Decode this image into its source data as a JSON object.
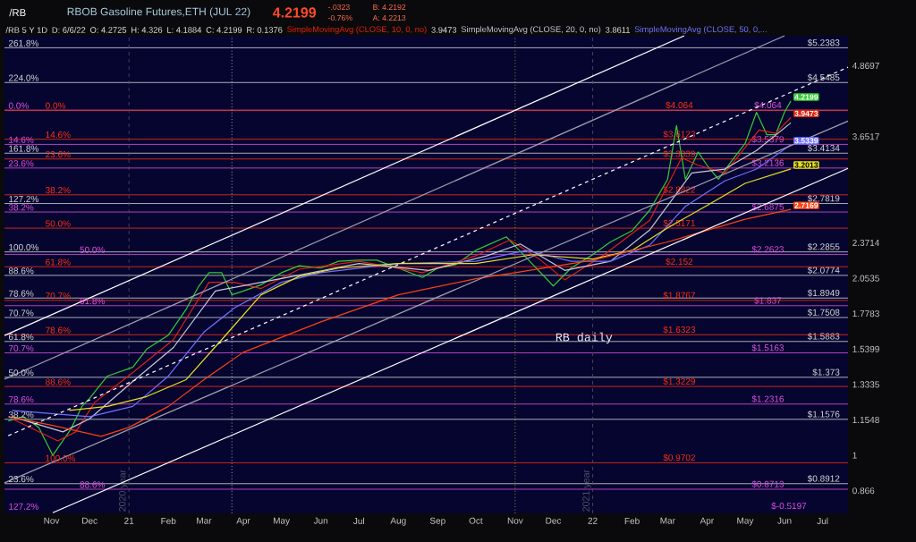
{
  "chart_data": {
    "type": "line",
    "title": "RBOB Gasoline Futures,ETH (JUL 22)",
    "marker": "none",
    "log": true,
    "legend": "top",
    "xlim": [
      "2020-09-25",
      "2022-07-21"
    ],
    "ylim": [
      0.79,
      5.5
    ],
    "xticks": [
      {
        "value": "2020-11-01",
        "label": "Nov"
      },
      {
        "value": "2020-12-01",
        "label": "Dec"
      },
      {
        "value": "2021-01-01",
        "label": "21"
      },
      {
        "value": "2021-02-01",
        "label": "Feb"
      },
      {
        "value": "2021-03-01",
        "label": "Mar"
      },
      {
        "value": "2021-04-01",
        "label": "Apr"
      },
      {
        "value": "2021-05-01",
        "label": "May"
      },
      {
        "value": "2021-06-01",
        "label": "Jun"
      },
      {
        "value": "2021-07-01",
        "label": "Jul"
      },
      {
        "value": "2021-08-01",
        "label": "Aug"
      },
      {
        "value": "2021-09-01",
        "label": "Sep"
      },
      {
        "value": "2021-10-01",
        "label": "Oct"
      },
      {
        "value": "2021-11-01",
        "label": "Nov"
      },
      {
        "value": "2021-12-01",
        "label": "Dec"
      },
      {
        "value": "2022-01-01",
        "label": "22"
      },
      {
        "value": "2022-02-01",
        "label": "Feb"
      },
      {
        "value": "2022-03-01",
        "label": "Mar"
      },
      {
        "value": "2022-04-01",
        "label": "Apr"
      },
      {
        "value": "2022-05-01",
        "label": "May"
      },
      {
        "value": "2022-06-01",
        "label": "Jun"
      },
      {
        "value": "2022-07-01",
        "label": "Jul"
      }
    ],
    "yticks": [
      {
        "value": 0.866,
        "label": "0.866"
      },
      {
        "value": 1,
        "label": "1"
      },
      {
        "value": 1.1548,
        "label": "1.1548"
      },
      {
        "value": 1.3335,
        "label": "1.3335"
      },
      {
        "value": 1.5399,
        "label": "1.5399"
      },
      {
        "value": 1.7783,
        "label": "1.7783"
      },
      {
        "value": 2.0535,
        "label": "2.0535"
      },
      {
        "value": 2.3714,
        "label": "2.3714"
      },
      {
        "value": 3.6517,
        "label": "3.6517"
      },
      {
        "value": 4.8697,
        "label": "4.8697"
      }
    ],
    "series": [
      {
        "color": "#33cc33",
        "x": [
          "2020-09-28",
          "2020-10-10",
          "2020-10-22",
          "2020-11-02",
          "2020-11-06",
          "2020-11-16",
          "2020-11-25",
          "2020-12-01",
          "2020-12-15",
          "2021-01-04",
          "2021-01-15",
          "2021-02-01",
          "2021-02-15",
          "2021-02-25",
          "2021-03-05",
          "2021-03-15",
          "2021-03-23",
          "2021-04-01",
          "2021-04-15",
          "2021-05-01",
          "2021-05-15",
          "2021-06-01",
          "2021-06-15",
          "2021-07-01",
          "2021-07-15",
          "2021-08-01",
          "2021-08-20",
          "2021-09-01",
          "2021-09-15",
          "2021-10-01",
          "2021-10-25",
          "2021-11-01",
          "2021-11-15",
          "2021-12-01",
          "2021-12-15",
          "2022-01-01",
          "2022-01-15",
          "2022-02-01",
          "2022-02-15",
          "2022-03-01",
          "2022-03-08",
          "2022-03-15",
          "2022-03-25",
          "2022-04-01",
          "2022-04-10",
          "2022-04-20",
          "2022-05-01",
          "2022-05-10",
          "2022-05-18",
          "2022-05-25",
          "2022-06-01",
          "2022-06-06"
        ],
        "values": [
          1.15,
          1.17,
          1.12,
          1.0,
          1.03,
          1.11,
          1.22,
          1.26,
          1.38,
          1.43,
          1.54,
          1.63,
          1.81,
          1.99,
          2.1,
          2.1,
          1.92,
          1.95,
          2.0,
          2.1,
          2.16,
          2.14,
          2.2,
          2.21,
          2.21,
          2.14,
          2.06,
          2.14,
          2.17,
          2.3,
          2.43,
          2.34,
          2.17,
          1.99,
          2.14,
          2.26,
          2.38,
          2.49,
          2.71,
          3.07,
          3.82,
          3.07,
          3.43,
          3.25,
          3.07,
          3.3,
          3.55,
          4.03,
          3.68,
          3.68,
          4.03,
          4.2199
        ],
        "value_labels": [
          null,
          null,
          null,
          null,
          null,
          null,
          null,
          null,
          null,
          null,
          null,
          null,
          null,
          null,
          null,
          null,
          null,
          null,
          null,
          null,
          null,
          null,
          null,
          null,
          null,
          null,
          null,
          null,
          null,
          null,
          null,
          null,
          null,
          null,
          null,
          null,
          null,
          null,
          null,
          null,
          null,
          null,
          null,
          null,
          null,
          null,
          null,
          null,
          null,
          null,
          null,
          "4.2199"
        ]
      },
      {
        "name": "SimpleMovingAvg (CLOSE, 10, 0, no)",
        "color": "#e02010",
        "x": [
          "2020-10-01",
          "2020-11-06",
          "2020-11-20",
          "2020-12-05",
          "2021-01-04",
          "2021-02-05",
          "2021-03-05",
          "2021-03-25",
          "2021-04-15",
          "2021-05-15",
          "2021-07-01",
          "2021-08-20",
          "2021-10-01",
          "2021-10-28",
          "2021-11-20",
          "2021-12-10",
          "2022-01-10",
          "2022-02-15",
          "2022-03-12",
          "2022-03-25",
          "2022-04-15",
          "2022-05-12",
          "2022-05-25",
          "2022-06-06"
        ],
        "values": [
          1.16,
          1.06,
          1.1,
          1.24,
          1.4,
          1.6,
          2.02,
          2.02,
          1.97,
          2.13,
          2.2,
          2.1,
          2.25,
          2.4,
          2.22,
          2.04,
          2.26,
          2.6,
          3.35,
          3.25,
          3.15,
          3.75,
          3.7,
          3.9473
        ],
        "value_labels": [
          null,
          null,
          null,
          null,
          null,
          null,
          null,
          null,
          null,
          null,
          null,
          null,
          null,
          null,
          null,
          null,
          null,
          null,
          null,
          null,
          null,
          null,
          null,
          "3.9473"
        ]
      },
      {
        "name": "SimpleMovingAvg (CLOSE, 20, 0, no)",
        "color": "#c8c8d8",
        "x": [
          "2020-10-01",
          "2020-11-10",
          "2020-12-01",
          "2021-01-04",
          "2021-02-05",
          "2021-03-10",
          "2021-04-05",
          "2021-05-15",
          "2021-07-01",
          "2021-08-25",
          "2021-10-10",
          "2021-11-05",
          "2021-12-10",
          "2022-01-15",
          "2022-02-15",
          "2022-03-20",
          "2022-04-15",
          "2022-05-10",
          "2022-06-06"
        ],
        "values": [
          1.17,
          1.1,
          1.16,
          1.35,
          1.55,
          1.95,
          2.0,
          2.08,
          2.18,
          2.12,
          2.25,
          2.36,
          2.12,
          2.2,
          2.5,
          3.15,
          3.2,
          3.45,
          3.8611
        ]
      },
      {
        "name": "SimpleMovingAvg (CLOSE, 50, 0,...",
        "color": "#7070ff",
        "x": [
          "2020-10-01",
          "2020-12-01",
          "2021-01-04",
          "2021-02-01",
          "2021-03-01",
          "2021-03-25",
          "2021-05-01",
          "2021-06-01",
          "2021-08-01",
          "2021-10-01",
          "2021-11-10",
          "2021-12-15",
          "2022-01-15",
          "2022-02-15",
          "2022-03-15",
          "2022-04-15",
          "2022-05-10",
          "2022-06-06"
        ],
        "values": [
          1.2,
          1.17,
          1.22,
          1.38,
          1.65,
          1.82,
          2.02,
          2.1,
          2.18,
          2.2,
          2.3,
          2.2,
          2.2,
          2.35,
          2.75,
          3.05,
          3.2,
          3.5339
        ],
        "value_labels": [
          null,
          null,
          null,
          null,
          null,
          null,
          null,
          null,
          null,
          null,
          null,
          null,
          null,
          null,
          null,
          null,
          null,
          "3.5339"
        ]
      },
      {
        "color": "#e8e020",
        "x": [
          "2020-11-15",
          "2020-12-15",
          "2021-01-15",
          "2021-02-15",
          "2021-03-15",
          "2021-04-15",
          "2021-05-15",
          "2021-06-15",
          "2021-08-01",
          "2021-10-01",
          "2021-11-15",
          "2022-01-01",
          "2022-02-01",
          "2022-03-01",
          "2022-04-01",
          "2022-05-01",
          "2022-06-06"
        ],
        "values": [
          1.2,
          1.22,
          1.27,
          1.36,
          1.6,
          1.92,
          2.07,
          2.14,
          2.18,
          2.18,
          2.26,
          2.22,
          2.3,
          2.52,
          2.76,
          3.02,
          3.2013
        ],
        "value_labels": [
          null,
          null,
          null,
          null,
          null,
          null,
          null,
          null,
          null,
          null,
          null,
          null,
          null,
          null,
          null,
          null,
          "3.2013"
        ]
      },
      {
        "color": "#ff4010",
        "x": [
          "2020-09-28",
          "2020-11-01",
          "2020-12-10",
          "2021-01-01",
          "2021-02-01",
          "2021-03-01",
          "2021-04-01",
          "2021-06-01",
          "2021-08-01",
          "2021-10-01",
          "2021-11-01",
          "2022-01-01",
          "2022-03-01",
          "2022-05-01",
          "2022-06-06"
        ],
        "values": [
          1.17,
          1.13,
          1.08,
          1.12,
          1.22,
          1.36,
          1.52,
          1.72,
          1.92,
          2.05,
          2.1,
          2.21,
          2.38,
          2.61,
          2.7169
        ],
        "value_labels": [
          null,
          null,
          null,
          null,
          null,
          null,
          null,
          null,
          null,
          null,
          null,
          null,
          null,
          null,
          "2.7169"
        ]
      },
      {
        "color": "#ffffff",
        "x": [
          "2020-09-25",
          "2022-03-14"
        ],
        "values": [
          1.627,
          5.5
        ]
      },
      {
        "color": "#a0a0b0",
        "x": [
          "2020-09-25",
          "2022-06-01"
        ],
        "values": [
          1.362,
          5.5
        ]
      },
      {
        "color": "#ffffff",
        "line_style": "dashed",
        "x": [
          "2020-09-28",
          "2022-07-21"
        ],
        "values": [
          1.083,
          4.84
        ]
      },
      {
        "color": "#a0a0b0",
        "x": [
          "2020-09-25",
          "2022-07-21"
        ],
        "values": [
          0.894,
          3.89
        ]
      },
      {
        "color": "#ffffff",
        "x": [
          "2020-11-02",
          "2022-07-21"
        ],
        "values": [
          0.792,
          3.21
        ]
      }
    ],
    "ref_lines": [
      {
        "axis": "y",
        "value": 5.2383,
        "label": "$5.2383",
        "color": "#d8d8d8"
      },
      {
        "axis": "y",
        "value": 4.5485,
        "label": "$4.5485",
        "color": "#d8d8d8"
      },
      {
        "axis": "y",
        "value": 3.4134,
        "label": "$3.4134",
        "color": "#d8d8d8"
      },
      {
        "axis": "y",
        "value": 2.7819,
        "label": "$2.7819",
        "color": "#d8d8d8"
      },
      {
        "axis": "y",
        "value": 2.2855,
        "label": "$2.2855",
        "color": "#d8d8d8"
      },
      {
        "axis": "y",
        "value": 2.0774,
        "label": "$2.0774",
        "color": "#d8d8d8"
      },
      {
        "axis": "y",
        "value": 1.8949,
        "label": "$1.8949",
        "color": "#d8d8d8"
      },
      {
        "axis": "y",
        "value": 1.7508,
        "label": "$1.7508",
        "color": "#d8d8d8"
      },
      {
        "axis": "y",
        "value": 1.5883,
        "label": "$1.5883",
        "color": "#d8d8d8"
      },
      {
        "axis": "y",
        "value": 1.373,
        "label": "$1.373",
        "color": "#d8d8d8"
      },
      {
        "axis": "y",
        "value": 1.1576,
        "label": "$1.1576",
        "color": "#d8d8d8"
      },
      {
        "axis": "y",
        "value": 0.8912,
        "label": "$0.8912",
        "color": "#d8d8d8"
      },
      {
        "axis": "y",
        "value": 4.064,
        "label": "$4.064",
        "color": "#e050e0"
      },
      {
        "axis": "y",
        "value": 3.5379,
        "label": "$3.5379",
        "color": "#e050e0"
      },
      {
        "axis": "y",
        "value": 3.2136,
        "label": "$3.2136",
        "color": "#e050e0"
      },
      {
        "axis": "y",
        "value": 2.6875,
        "label": "$2.6875",
        "color": "#e050e0"
      },
      {
        "axis": "y",
        "value": 2.2623,
        "label": "$2.2623",
        "color": "#e050e0"
      },
      {
        "axis": "y",
        "value": 1.837,
        "label": "$1.837",
        "color": "#e050e0"
      },
      {
        "axis": "y",
        "value": 1.5163,
        "label": "$1.5163",
        "color": "#e050e0"
      },
      {
        "axis": "y",
        "value": 1.2316,
        "label": "$1.2316",
        "color": "#e050e0"
      },
      {
        "axis": "y",
        "value": 0.8713,
        "label": "$0.8713",
        "color": "#e050e0"
      },
      {
        "axis": "y",
        "value": 4.064,
        "label": "$4.064",
        "color": "#ff3010"
      },
      {
        "axis": "y",
        "value": 3.6123,
        "label": "$3.6123",
        "color": "#ff3010"
      },
      {
        "axis": "y",
        "value": 3.3339,
        "label": "$3.3339",
        "color": "#ff3010"
      },
      {
        "axis": "y",
        "value": 2.8822,
        "label": "$2.8822",
        "color": "#ff3010"
      },
      {
        "axis": "y",
        "value": 2.5171,
        "label": "$2.5171",
        "color": "#ff3010"
      },
      {
        "axis": "y",
        "value": 2.152,
        "label": "$2.152",
        "color": "#ff3010"
      },
      {
        "axis": "y",
        "value": 1.8767,
        "label": "$1.8767",
        "color": "#ff3010"
      },
      {
        "axis": "y",
        "value": 1.6323,
        "label": "$1.6323",
        "color": "#ff3010"
      },
      {
        "axis": "y",
        "value": 1.3229,
        "label": "$1.3229",
        "color": "#ff3010"
      },
      {
        "axis": "y",
        "value": 0.9702,
        "label": "$0.9702",
        "color": "#ff3010"
      },
      {
        "axis": "x",
        "value": "2021-01-01",
        "label": "2020 year",
        "color": "#505060",
        "line_style": "dashed"
      },
      {
        "axis": "x",
        "value": "2022-01-01",
        "label": "2021 year",
        "color": "#505060",
        "line_style": "dashed"
      },
      {
        "axis": "x",
        "value": "2021-03-23",
        "color": "#ffffff",
        "line_style": "dotted"
      },
      {
        "axis": "x",
        "value": "2021-11-01",
        "color": "#e8e020",
        "line_style": "dotted"
      }
    ],
    "annotations": [
      "/RB",
      "4.2199",
      "-.0323",
      "-0.76%",
      "B: 4.2192",
      "A: 4.2213",
      "/RB 5 Y 1D",
      "D: 6/6/22",
      "O: 4.2725",
      "H: 4.326",
      "L: 4.1884",
      "C: 4.2199",
      "R: 0.1376",
      "3.9473",
      "3.8611",
      "RB daily",
      "127.2%",
      "$-0.5197",
      {
        "text": "261.8%",
        "x": "2020-09-27",
        "y": 5.2383
      },
      {
        "text": "224.0%",
        "x": "2020-09-27",
        "y": 4.5485
      },
      {
        "text": "161.8%",
        "x": "2020-09-27",
        "y": 3.4134
      },
      {
        "text": "127.2%",
        "x": "2020-09-27",
        "y": 2.7819
      },
      {
        "text": "100.0%",
        "x": "2020-09-27",
        "y": 2.2855
      },
      {
        "text": "88.6%",
        "x": "2020-09-27",
        "y": 2.0774
      },
      {
        "text": "78.6%",
        "x": "2020-09-27",
        "y": 1.8949
      },
      {
        "text": "70.7%",
        "x": "2020-09-27",
        "y": 1.7508
      },
      {
        "text": "61.8%",
        "x": "2020-09-27",
        "y": 1.5883
      },
      {
        "text": "50.0%",
        "x": "2020-09-27",
        "y": 1.373
      },
      {
        "text": "38.2%",
        "x": "2020-09-27",
        "y": 1.1576
      },
      {
        "text": "23.6%",
        "x": "2020-09-27",
        "y": 0.8912
      },
      {
        "text": "0.0%",
        "x": "2020-09-27",
        "y": 4.064
      },
      {
        "text": "14.6%",
        "x": "2020-09-27",
        "y": 3.5379
      },
      {
        "text": "23.6%",
        "x": "2020-09-27",
        "y": 3.2136
      },
      {
        "text": "38.2%",
        "x": "2020-09-27",
        "y": 2.6875
      },
      {
        "text": "50.0%",
        "x": "2020-11-22",
        "y": 2.2623
      },
      {
        "text": "61.8%",
        "x": "2020-11-22",
        "y": 1.837
      },
      {
        "text": "70.7%",
        "x": "2020-09-27",
        "y": 1.5163
      },
      {
        "text": "78.6%",
        "x": "2020-09-27",
        "y": 1.2316
      },
      {
        "text": "88.6%",
        "x": "2020-11-22",
        "y": 0.8713
      },
      {
        "text": "0.0%",
        "x": "2020-10-26",
        "y": 4.064
      },
      {
        "text": "14.6%",
        "x": "2020-10-26",
        "y": 3.6123
      },
      {
        "text": "23.6%",
        "x": "2020-10-26",
        "y": 3.3339
      },
      {
        "text": "38.2%",
        "x": "2020-10-26",
        "y": 2.8822
      },
      {
        "text": "50.0%",
        "x": "2020-10-26",
        "y": 2.5171
      },
      {
        "text": "61.8%",
        "x": "2020-10-26",
        "y": 2.152
      },
      {
        "text": "70.7%",
        "x": "2020-10-26",
        "y": 1.8767
      },
      {
        "text": "78.6%",
        "x": "2020-10-26",
        "y": 1.6323
      },
      {
        "text": "88.6%",
        "x": "2020-10-26",
        "y": 1.3229
      },
      {
        "text": "100.0%",
        "x": "2020-10-26",
        "y": 0.9702
      }
    ]
  }
}
